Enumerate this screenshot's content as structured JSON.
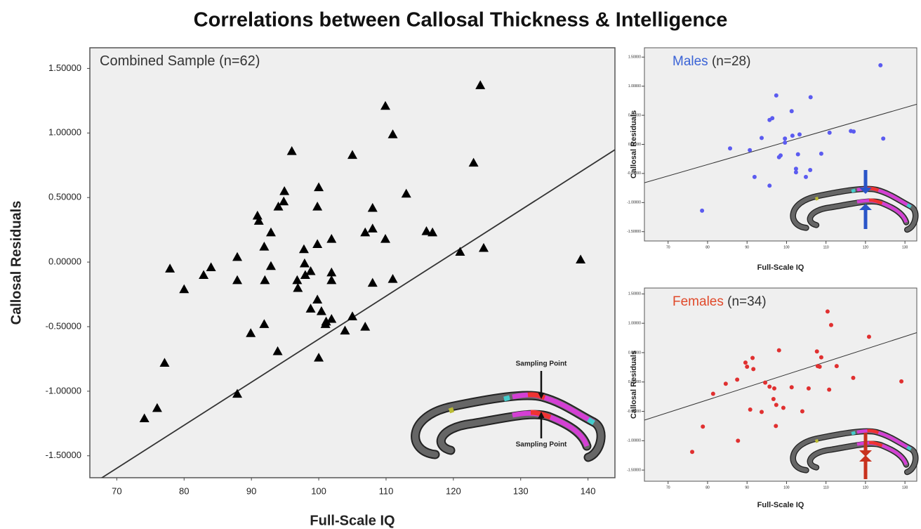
{
  "title": "Correlations between Callosal Thickness & Intelligence",
  "chart_data": [
    {
      "type": "scatter",
      "label": "Combined Sample (n=62)",
      "xlabel": "Full-Scale IQ",
      "ylabel": "Callosal Residuals",
      "marker": "triangle",
      "color": "#000000",
      "inset_labels": [
        "Sampling Point",
        "Sampling Point"
      ],
      "arrow_color": "#111111",
      "xlim": [
        66,
        144
      ],
      "ylim": [
        -1.67,
        1.66
      ],
      "xticks": [
        70,
        80,
        90,
        100,
        110,
        120,
        130,
        140
      ],
      "yticks": [
        {
          "value": 1.5,
          "label": "1.50000"
        },
        {
          "value": 1,
          "label": "1.00000"
        },
        {
          "value": 0.5,
          "label": "0.50000"
        },
        {
          "value": 0,
          "label": "0.00000"
        },
        {
          "value": -0.5,
          "label": "-0.50000"
        },
        {
          "value": -1,
          "label": "-1.00000"
        },
        {
          "value": -1.5,
          "label": "-1.50000"
        }
      ],
      "x": [
        74.1,
        76.0,
        77.1,
        77.9,
        80.0,
        82.9,
        84.0,
        87.9,
        87.9,
        87.9,
        89.9,
        90.9,
        91.1,
        91.9,
        91.9,
        92.0,
        92.9,
        92.9,
        93.9,
        94.0,
        94.8,
        94.9,
        96.0,
        96.8,
        96.9,
        97.8,
        97.9,
        98.0,
        98.8,
        98.8,
        99.8,
        99.8,
        100.0,
        99.8,
        100.0,
        100.4,
        101.0,
        101.1,
        101.9,
        101.9,
        101.9,
        101.9,
        103.9,
        105.0,
        105.0,
        106.9,
        106.9,
        108.0,
        108.0,
        108.0,
        109.9,
        109.9,
        111.0,
        111.0,
        113.0,
        116.0,
        116.9,
        121.0,
        123.0,
        124.0,
        124.5,
        138.9
      ],
      "values": [
        -1.21,
        -1.13,
        -0.78,
        -0.05,
        -0.21,
        -0.1,
        -0.04,
        -1.02,
        0.04,
        -0.14,
        -0.55,
        0.36,
        0.32,
        -0.48,
        0.12,
        -0.14,
        0.23,
        -0.03,
        -0.69,
        0.43,
        0.47,
        0.55,
        0.86,
        -0.14,
        -0.2,
        0.1,
        -0.01,
        -0.1,
        -0.36,
        -0.07,
        0.14,
        0.43,
        0.58,
        -0.29,
        -0.74,
        -0.38,
        -0.48,
        -0.46,
        0.18,
        -0.14,
        -0.08,
        -0.44,
        -0.53,
        0.83,
        -0.42,
        -0.5,
        0.23,
        0.42,
        0.26,
        -0.16,
        0.18,
        1.21,
        0.99,
        -0.13,
        0.53,
        0.24,
        0.23,
        0.08,
        0.77,
        1.37,
        0.11,
        0.02
      ],
      "fit_x": [
        66,
        144
      ],
      "fit_y": [
        -1.73,
        0.87
      ]
    },
    {
      "type": "scatter",
      "label": "Males",
      "label_color": "#3a63d6",
      "n_label": "(n=28)",
      "xlabel": "Full-Scale IQ",
      "ylabel": "Callosal Residuals",
      "marker": "circle",
      "color": "#5b5bf0",
      "arrow_color": "#2a55c8",
      "xlim": [
        64,
        133
      ],
      "ylim": [
        -1.66,
        1.66
      ],
      "xticks": [
        70,
        80,
        90,
        100,
        110,
        120,
        130
      ],
      "yticks": [
        {
          "value": 1.5,
          "label": "1.50000"
        },
        {
          "value": 1,
          "label": "1.00000"
        },
        {
          "value": 0.5,
          "label": "0.50000"
        },
        {
          "value": 0,
          "label": "0.00000"
        },
        {
          "value": -0.5,
          "label": "-0.50000"
        },
        {
          "value": -1,
          "label": "-1.00000"
        },
        {
          "value": -1.5,
          "label": "-1.50000"
        }
      ],
      "x": [
        123.8,
        97.4,
        106.1,
        101.3,
        96.4,
        95.7,
        93.7,
        99.6,
        101.5,
        103.3,
        99.6,
        110.9,
        116.3,
        117.0,
        124.5,
        85.7,
        90.7,
        98.5,
        98.1,
        102.9,
        108.8,
        102.4,
        102.4,
        106.0,
        91.9,
        95.7,
        104.9,
        78.6
      ],
      "values": [
        1.36,
        0.84,
        0.81,
        0.57,
        0.45,
        0.42,
        0.11,
        0.1,
        0.15,
        0.17,
        0.03,
        0.2,
        0.23,
        0.22,
        0.1,
        -0.07,
        -0.1,
        -0.19,
        -0.22,
        -0.17,
        -0.16,
        -0.42,
        -0.48,
        -0.44,
        -0.56,
        -0.71,
        -0.56,
        -1.14
      ],
      "fit_x": [
        64,
        133
      ],
      "fit_y": [
        -0.66,
        0.69
      ]
    },
    {
      "type": "scatter",
      "label": "Females",
      "label_color": "#e0492a",
      "n_label": "(n=34)",
      "xlabel": "Full-Scale IQ",
      "ylabel": "Callosal Residuals",
      "marker": "circle",
      "color": "#e03030",
      "arrow_color": "#c8321e",
      "xlim": [
        64,
        133
      ],
      "ylim": [
        -1.69,
        1.6
      ],
      "xticks": [
        70,
        80,
        90,
        100,
        110,
        120,
        130
      ],
      "yticks": [
        {
          "value": 1.5,
          "label": "1.50000"
        },
        {
          "value": 1,
          "label": "1.00000"
        },
        {
          "value": 0.5,
          "label": "0.50000"
        },
        {
          "value": 0,
          "label": "0.00000"
        },
        {
          "value": -0.5,
          "label": "-0.50000"
        },
        {
          "value": -1,
          "label": "-1.00000"
        },
        {
          "value": -1.5,
          "label": "-1.50000"
        }
      ],
      "x": [
        110.4,
        111.3,
        120.9,
        98.1,
        107.7,
        108.8,
        107.9,
        108.4,
        112.7,
        91.4,
        89.6,
        90.0,
        91.6,
        87.5,
        84.6,
        94.6,
        95.7,
        96.9,
        101.3,
        105.6,
        110.8,
        116.9,
        129.1,
        81.4,
        90.8,
        96.7,
        97.4,
        99.2,
        104.0,
        93.7,
        97.3,
        78.8,
        87.7,
        76.1
      ],
      "values": [
        1.2,
        0.97,
        0.77,
        0.54,
        0.52,
        0.42,
        0.27,
        0.26,
        0.27,
        0.41,
        0.33,
        0.26,
        0.22,
        0.04,
        -0.03,
        -0.01,
        -0.08,
        -0.11,
        -0.09,
        -0.11,
        -0.13,
        0.07,
        0.01,
        -0.2,
        -0.47,
        -0.29,
        -0.39,
        -0.44,
        -0.5,
        -0.51,
        -0.75,
        -0.76,
        -1.0,
        -1.19
      ],
      "fit_x": [
        64,
        133
      ],
      "fit_y": [
        -0.65,
        0.84
      ]
    }
  ]
}
